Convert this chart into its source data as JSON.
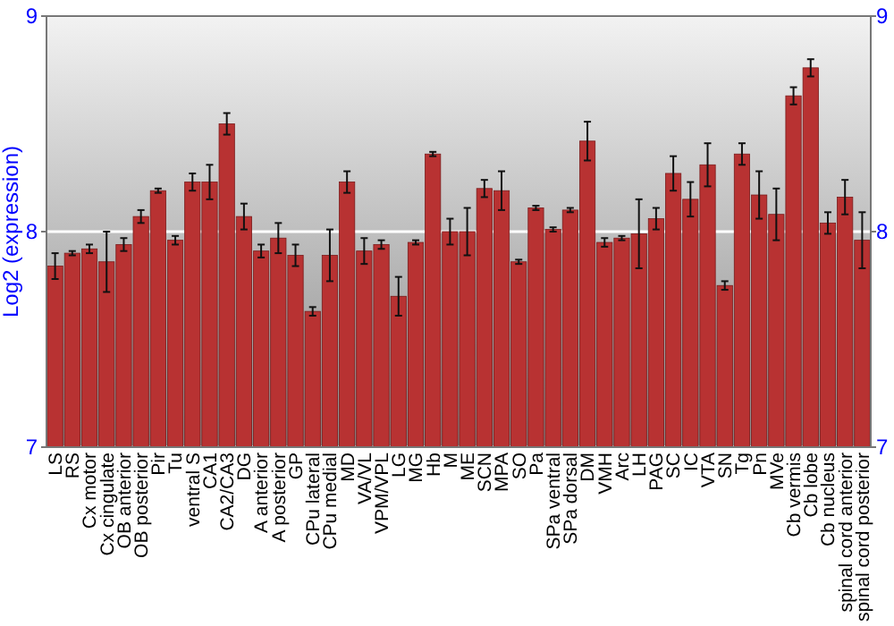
{
  "chart_data": {
    "type": "bar",
    "ylabel": "Log2 (expression)",
    "categories": [
      "LS",
      "RS",
      "Cx motor",
      "Cx cingulate",
      "OB anterior",
      "OB posterior",
      "Pir",
      "Tu",
      "ventral S",
      "CA1",
      "CA2/CA3",
      "DG",
      "A anterior",
      "A posterior",
      "GP",
      "CPu lateral",
      "CPu medial",
      "MD",
      "VA/VL",
      "VPM/VPL",
      "LG",
      "MG",
      "Hb",
      "M",
      "ME",
      "SCN",
      "MPA",
      "SO",
      "Pa",
      "SPa ventral",
      "SPa dorsal",
      "DM",
      "VMH",
      "Arc",
      "LH",
      "PAG",
      "SC",
      "IC",
      "VTA",
      "SN",
      "Tg",
      "Pn",
      "MVe",
      "Cb vermis",
      "Cb lobe",
      "Cb nucleus",
      "spinal cord anterior",
      "spinal cord posterior"
    ],
    "values": [
      7.84,
      7.9,
      7.92,
      7.86,
      7.94,
      8.07,
      8.19,
      7.96,
      8.23,
      8.23,
      8.5,
      8.07,
      7.91,
      7.97,
      7.89,
      7.63,
      7.89,
      8.23,
      7.91,
      7.94,
      7.7,
      7.95,
      8.36,
      8.0,
      8.0,
      8.2,
      8.19,
      7.86,
      8.11,
      8.01,
      8.1,
      8.42,
      7.95,
      7.97,
      7.99,
      8.06,
      8.27,
      8.15,
      8.31,
      7.75,
      8.36,
      8.17,
      8.08,
      8.63,
      8.76,
      8.04,
      8.16,
      7.96
    ],
    "errors": [
      0.06,
      0.01,
      0.02,
      0.14,
      0.03,
      0.03,
      0.01,
      0.02,
      0.04,
      0.08,
      0.05,
      0.06,
      0.03,
      0.07,
      0.05,
      0.02,
      0.12,
      0.05,
      0.06,
      0.02,
      0.09,
      0.01,
      0.01,
      0.06,
      0.11,
      0.04,
      0.09,
      0.01,
      0.01,
      0.01,
      0.01,
      0.09,
      0.02,
      0.01,
      0.16,
      0.05,
      0.08,
      0.08,
      0.1,
      0.02,
      0.05,
      0.11,
      0.12,
      0.04,
      0.04,
      0.05,
      0.08,
      0.13
    ],
    "color": "#b83232",
    "ylim": [
      7,
      9
    ],
    "yticks": [
      7,
      8,
      9
    ],
    "y2lim": [
      7,
      9
    ],
    "y2ticks": [
      7,
      8,
      9
    ],
    "grid": "y"
  }
}
